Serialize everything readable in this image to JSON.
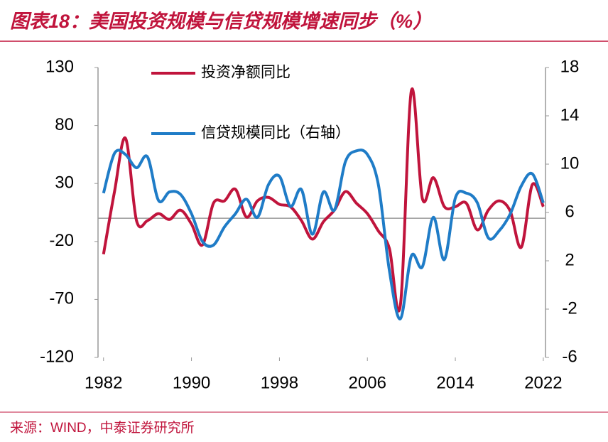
{
  "chart_data": {
    "type": "line",
    "title": "图表18：美国投资规模与信贷规模增速同步（%）",
    "source": "来源：WIND，中泰证券研究所",
    "x": [
      1982,
      1983,
      1984,
      1985,
      1986,
      1987,
      1988,
      1989,
      1990,
      1991,
      1992,
      1993,
      1994,
      1995,
      1996,
      1997,
      1998,
      1999,
      2000,
      2001,
      2002,
      2003,
      2004,
      2005,
      2006,
      2007,
      2008,
      2009,
      2010,
      2011,
      2012,
      2013,
      2014,
      2015,
      2016,
      2017,
      2018,
      2019,
      2020,
      2021,
      2022
    ],
    "xlim": [
      1981.5,
      2022.2
    ],
    "xticks": [
      1982,
      1990,
      1998,
      2006,
      2014,
      2022
    ],
    "ylim": [
      -120,
      130
    ],
    "yticks": [
      130,
      80,
      30,
      -20,
      -70,
      -120
    ],
    "y2lim": [
      -6,
      18
    ],
    "y2ticks": [
      18,
      14,
      10,
      6,
      2,
      -2,
      -6
    ],
    "series": [
      {
        "name": "投资净额同比",
        "color": "#c0143c",
        "values": [
          -31,
          23,
          69,
          -2,
          -2,
          4,
          -1,
          7,
          -5,
          -23,
          13,
          15,
          25,
          1,
          15,
          18,
          12,
          10,
          -2,
          -18,
          -3,
          7,
          23,
          13,
          4,
          -11,
          -26,
          -75,
          110,
          17,
          35,
          10,
          10,
          13,
          -10,
          7,
          15,
          6,
          -25,
          29,
          10
        ]
      },
      {
        "name": "信贷规模同比（右轴）",
        "color": "#1f7cc7",
        "axis": "y2",
        "values": [
          7.6,
          10.9,
          10.8,
          9.7,
          10.6,
          7,
          7.7,
          7.5,
          5.9,
          3.6,
          3.3,
          4.8,
          5.9,
          7.1,
          5.6,
          8.3,
          9,
          6.5,
          7.9,
          4.2,
          7.7,
          6.2,
          10.2,
          11.1,
          10.8,
          8.3,
          1.2,
          -2.8,
          2.4,
          1.5,
          5.6,
          2.1,
          7.2,
          7.6,
          6.8,
          3.9,
          4.5,
          5.9,
          8.2,
          9.2,
          6.8
        ]
      }
    ]
  }
}
